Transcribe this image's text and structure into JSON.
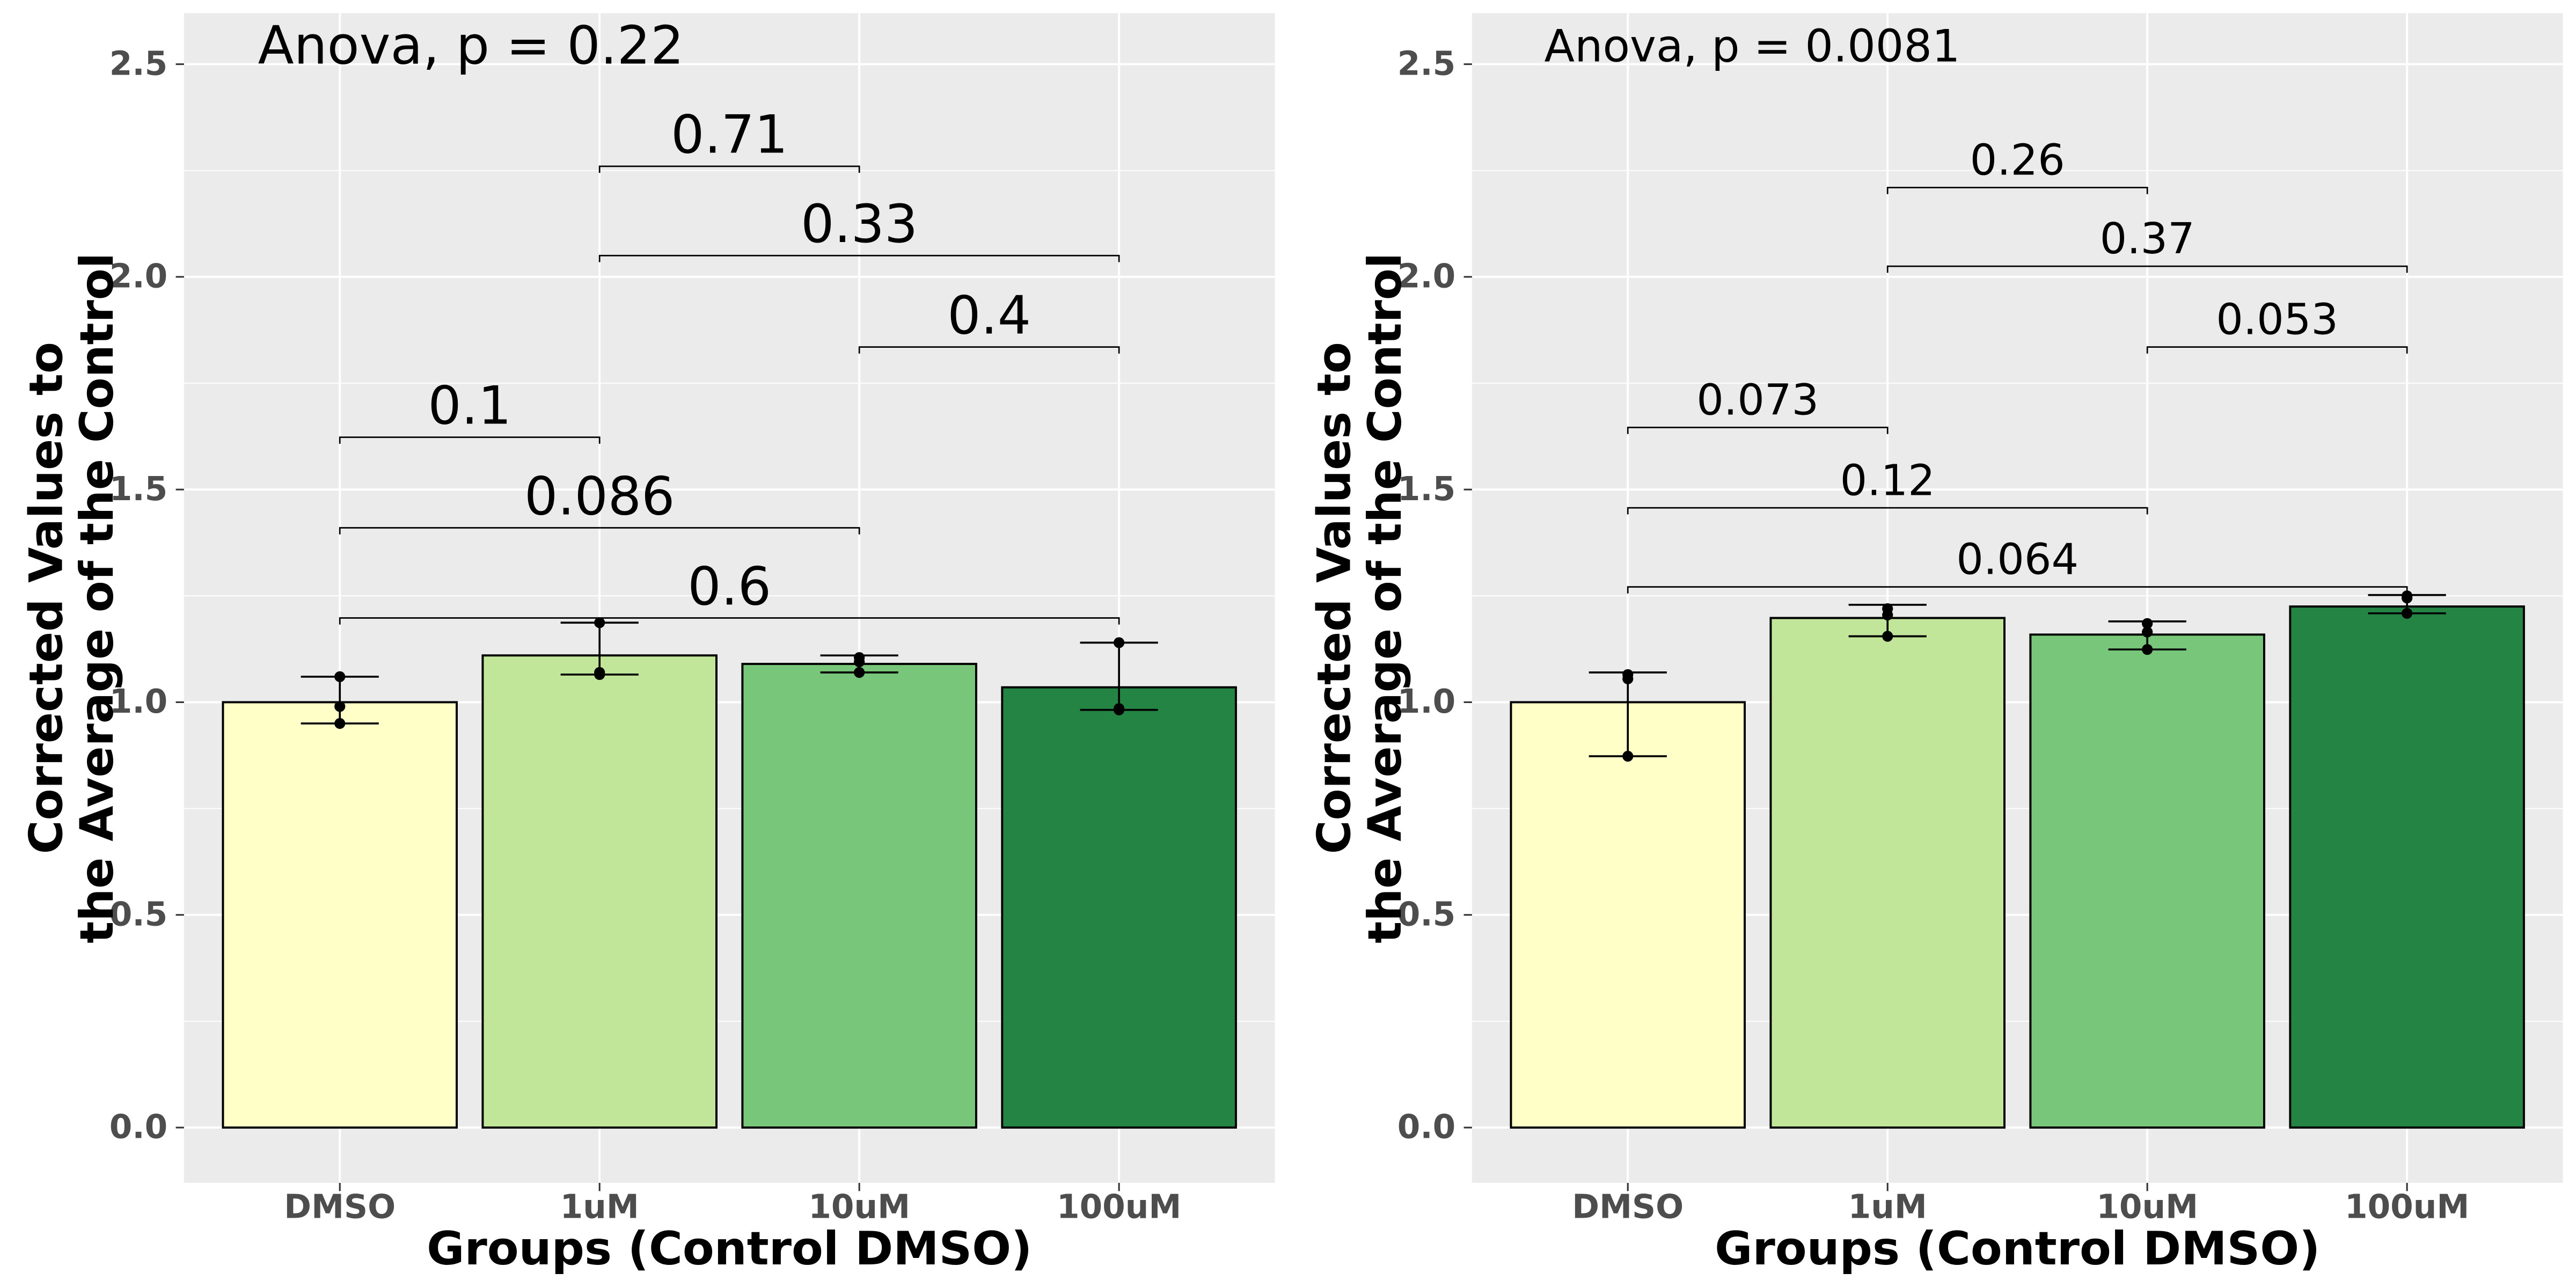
{
  "chart_data": [
    {
      "type": "bar",
      "annotation": "Anova, p = 0.22",
      "x_label": "Groups (Control DMSO)",
      "y_label": [
        "Corrected Values to",
        "the Average of the Control"
      ],
      "categories": [
        "DMSO",
        "1uM",
        "10uM",
        "100uM"
      ],
      "colors": [
        "#ffffc8",
        "#c2e699",
        "#78c679",
        "#238443"
      ],
      "values": [
        1.0,
        1.11,
        1.09,
        1.035
      ],
      "lower": [
        0.95,
        1.065,
        1.07,
        0.982
      ],
      "upper": [
        1.06,
        1.187,
        1.11,
        1.14
      ],
      "points": [
        [
          1.06,
          0.99,
          0.95
        ],
        [
          1.187,
          1.07,
          1.065
        ],
        [
          1.105,
          1.095,
          1.07
        ],
        [
          1.14,
          0.985,
          0.982
        ]
      ],
      "comparisons": [
        {
          "groups": [
            "1uM",
            "10uM"
          ],
          "y": 2.26,
          "p": 0.71
        },
        {
          "groups": [
            "1uM",
            "100uM"
          ],
          "y": 2.05,
          "p": 0.33
        },
        {
          "groups": [
            "10uM",
            "100uM"
          ],
          "y": 1.835,
          "p": 0.4
        },
        {
          "groups": [
            "DMSO",
            "1uM"
          ],
          "y": 1.623,
          "p": 0.1
        },
        {
          "groups": [
            "DMSO",
            "10uM"
          ],
          "y": 1.41,
          "p": 0.086
        },
        {
          "groups": [
            "DMSO",
            "100uM"
          ],
          "y": 1.198,
          "p": 0.6
        }
      ],
      "ylim": [
        -0.13,
        2.62
      ],
      "yticks": [
        {
          "value": 0,
          "label": "0.0"
        },
        0.5,
        {
          "value": 1,
          "label": "1.0"
        },
        1.5,
        {
          "value": 2,
          "label": "2.0"
        },
        2.5
      ],
      "grid": true
    },
    {
      "type": "bar",
      "annotation": "Anova, p = 0.0081",
      "x_label": "Groups (Control DMSO)",
      "y_label": [
        "Corrected Values to",
        "the Average of the Control"
      ],
      "categories": [
        "DMSO",
        "1uM",
        "10uM",
        "100uM"
      ],
      "colors": [
        "#ffffc8",
        "#c2e699",
        "#78c679",
        "#238443"
      ],
      "values": [
        1.0,
        1.198,
        1.159,
        1.225
      ],
      "lower": [
        0.873,
        1.155,
        1.124,
        1.209
      ],
      "upper": [
        1.07,
        1.229,
        1.19,
        1.252
      ],
      "points": [
        [
          1.065,
          1.055,
          0.873
        ],
        [
          1.22,
          1.205,
          1.155
        ],
        [
          1.185,
          1.165,
          1.124
        ],
        [
          1.25,
          1.245,
          1.209
        ]
      ],
      "comparisons": [
        {
          "groups": [
            "1uM",
            "10uM"
          ],
          "y": 2.21,
          "p": 0.26
        },
        {
          "groups": [
            "1uM",
            "100uM"
          ],
          "y": 2.025,
          "p": 0.37
        },
        {
          "groups": [
            "10uM",
            "100uM"
          ],
          "y": 1.835,
          "p": 0.053
        },
        {
          "groups": [
            "DMSO",
            "1uM"
          ],
          "y": 1.646,
          "p": 0.073
        },
        {
          "groups": [
            "DMSO",
            "10uM"
          ],
          "y": 1.457,
          "p": 0.12
        },
        {
          "groups": [
            "DMSO",
            "100uM"
          ],
          "y": 1.271,
          "p": 0.064
        }
      ],
      "ylim": [
        -0.13,
        2.62
      ],
      "yticks": [
        {
          "value": 0,
          "label": "0.0"
        },
        0.5,
        {
          "value": 1,
          "label": "1.0"
        },
        1.5,
        {
          "value": 2,
          "label": "2.0"
        },
        2.5
      ],
      "grid": true
    }
  ]
}
